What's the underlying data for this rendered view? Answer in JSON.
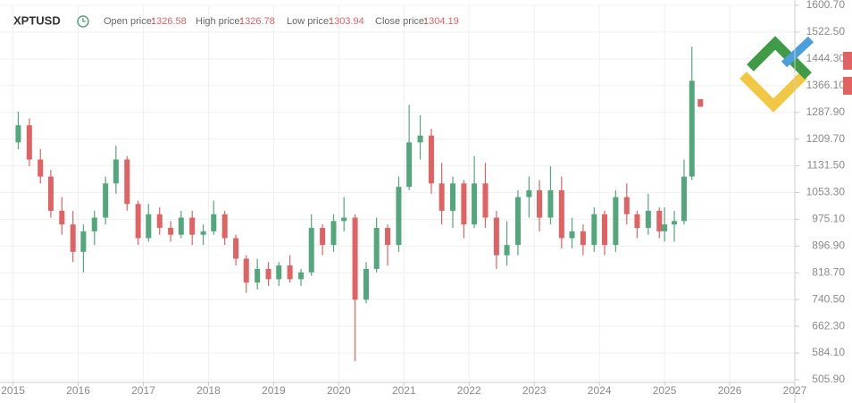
{
  "chart_data": {
    "type": "candlestick",
    "title": "XPTUSD",
    "summary": [
      {
        "label": "Open price:",
        "value": 1326.58
      },
      {
        "label": "High price:",
        "value": 1326.78
      },
      {
        "label": "Low price:",
        "value": 1303.94
      },
      {
        "label": "Close price:",
        "value": 1304.19
      }
    ],
    "up_color": "#53a77c",
    "down_color": "#e06262",
    "grid": true,
    "x": [
      2015.08,
      2015.25,
      2015.42,
      2015.58,
      2015.75,
      2015.92,
      2016.08,
      2016.25,
      2016.42,
      2016.58,
      2016.75,
      2016.92,
      2017.08,
      2017.25,
      2017.42,
      2017.58,
      2017.75,
      2017.92,
      2018.08,
      2018.25,
      2018.42,
      2018.58,
      2018.75,
      2018.92,
      2019.08,
      2019.25,
      2019.42,
      2019.58,
      2019.75,
      2019.92,
      2020.08,
      2020.25,
      2020.42,
      2020.58,
      2020.75,
      2020.92,
      2021.08,
      2021.25,
      2021.42,
      2021.58,
      2021.75,
      2021.92,
      2022.08,
      2022.25,
      2022.42,
      2022.58,
      2022.75,
      2022.92,
      2023.08,
      2023.25,
      2023.42,
      2023.58,
      2023.75,
      2023.92,
      2024.08,
      2024.25,
      2024.42,
      2024.58,
      2024.75,
      2024.92,
      2025.0,
      2025.15,
      2025.3,
      2025.42,
      2025.55
    ],
    "open": [
      1200,
      1250,
      1150,
      1100,
      1000,
      960,
      880,
      940,
      980,
      1080,
      1150,
      1020,
      920,
      990,
      950,
      930,
      980,
      930,
      940,
      990,
      920,
      860,
      790,
      830,
      800,
      840,
      800,
      820,
      950,
      900,
      970,
      980,
      740,
      830,
      950,
      900,
      1070,
      1200,
      1220,
      1080,
      1000,
      1080,
      960,
      1080,
      980,
      870,
      900,
      1040,
      1060,
      980,
      1060,
      920,
      940,
      900,
      990,
      900,
      1040,
      990,
      950,
      1000,
      940,
      960,
      970,
      1100,
      1326.58
    ],
    "high": [
      1290,
      1270,
      1180,
      1120,
      1040,
      1000,
      960,
      1000,
      1100,
      1190,
      1160,
      1030,
      1020,
      1010,
      970,
      1000,
      1000,
      960,
      1030,
      1000,
      930,
      870,
      860,
      850,
      850,
      870,
      830,
      990,
      960,
      990,
      1040,
      990,
      850,
      980,
      960,
      1100,
      1310,
      1280,
      1240,
      1140,
      1100,
      1090,
      1160,
      1140,
      1000,
      970,
      1060,
      1100,
      1090,
      1130,
      1100,
      980,
      960,
      1010,
      1000,
      1060,
      1080,
      1000,
      1050,
      1010,
      1010,
      1000,
      1150,
      1480,
      1326.78
    ],
    "low": [
      1180,
      1130,
      1080,
      980,
      930,
      850,
      820,
      900,
      960,
      1050,
      1000,
      900,
      910,
      930,
      910,
      920,
      900,
      900,
      930,
      900,
      840,
      760,
      770,
      780,
      780,
      790,
      780,
      810,
      870,
      880,
      940,
      560,
      730,
      820,
      840,
      880,
      1060,
      1150,
      1050,
      960,
      950,
      920,
      950,
      950,
      830,
      840,
      870,
      980,
      940,
      960,
      890,
      890,
      870,
      880,
      870,
      880,
      960,
      920,
      930,
      920,
      910,
      910,
      960,
      1090,
      1303.94
    ],
    "close": [
      1250,
      1150,
      1100,
      1000,
      960,
      880,
      940,
      980,
      1080,
      1150,
      1020,
      920,
      990,
      950,
      930,
      980,
      930,
      940,
      990,
      920,
      860,
      790,
      830,
      800,
      840,
      800,
      820,
      950,
      900,
      970,
      980,
      740,
      830,
      950,
      900,
      1070,
      1200,
      1220,
      1080,
      1000,
      1080,
      960,
      1080,
      980,
      870,
      900,
      1040,
      1060,
      980,
      1060,
      920,
      940,
      900,
      990,
      900,
      1040,
      990,
      950,
      1000,
      940,
      960,
      970,
      1100,
      1380,
      1304.19
    ],
    "xlim": [
      2014.8,
      2027.0
    ],
    "xticks": [
      2015,
      2016,
      2017,
      2018,
      2019,
      2020,
      2021,
      2022,
      2023,
      2024,
      2025,
      2026,
      2027
    ],
    "ylim": [
      505.9,
      1600.7
    ],
    "yticks": [
      {
        "value": 1600.7,
        "label": "1600.70"
      },
      {
        "value": 1522.5,
        "label": "1522.50"
      },
      {
        "value": 1444.3,
        "label": "1444.30"
      },
      {
        "value": 1366.1,
        "label": "1366.10"
      },
      {
        "value": 1287.9,
        "label": "1287.90"
      },
      {
        "value": 1209.7,
        "label": "1209.70"
      },
      {
        "value": 1131.5,
        "label": "1131.50"
      },
      {
        "value": 1053.3,
        "label": "1053.30"
      },
      {
        "value": 975.1,
        "label": "975.10"
      },
      {
        "value": 896.9,
        "label": "896.90"
      },
      {
        "value": 818.7,
        "label": "818.70"
      },
      {
        "value": 740.5,
        "label": "740.50"
      },
      {
        "value": 662.3,
        "label": "662.30"
      },
      {
        "value": 584.1,
        "label": "584.10"
      },
      {
        "value": 505.9,
        "label": "505.90"
      }
    ]
  }
}
